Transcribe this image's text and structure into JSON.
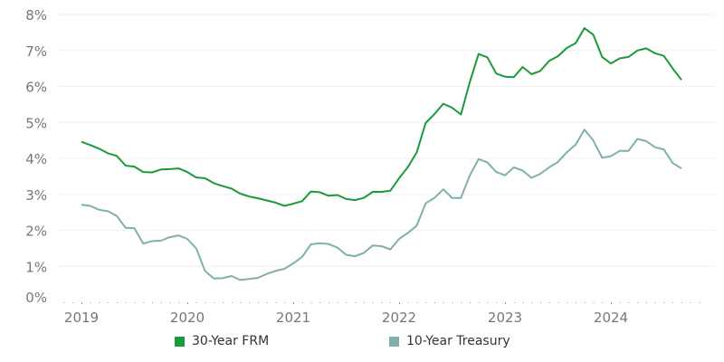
{
  "chart_data": {
    "type": "line",
    "title": "",
    "xlabel": "",
    "ylabel": "",
    "ylim": [
      0,
      8
    ],
    "y_ticks": [
      "0%",
      "1%",
      "2%",
      "3%",
      "4%",
      "5%",
      "6%",
      "7%",
      "8%"
    ],
    "x_ticks": [
      "2019",
      "2020",
      "2021",
      "2022",
      "2023",
      "2024"
    ],
    "grid": "horizontal",
    "legend_position": "bottom",
    "x_start": "2019-01",
    "x_step": "month",
    "series": [
      {
        "name": "30-Year FRM",
        "color": "#1a9a3a",
        "values": [
          4.46,
          4.37,
          4.27,
          4.14,
          4.07,
          3.8,
          3.77,
          3.62,
          3.61,
          3.69,
          3.7,
          3.72,
          3.62,
          3.47,
          3.45,
          3.31,
          3.23,
          3.16,
          3.02,
          2.94,
          2.89,
          2.83,
          2.77,
          2.68,
          2.74,
          2.81,
          3.08,
          3.06,
          2.96,
          2.98,
          2.87,
          2.84,
          2.9,
          3.07,
          3.07,
          3.1,
          3.45,
          3.76,
          4.17,
          4.98,
          5.23,
          5.52,
          5.41,
          5.22,
          6.11,
          6.9,
          6.81,
          6.36,
          6.27,
          6.26,
          6.54,
          6.34,
          6.43,
          6.71,
          6.84,
          7.07,
          7.2,
          7.62,
          7.44,
          6.82,
          6.64,
          6.78,
          6.82,
          7.0,
          7.06,
          6.92,
          6.85,
          6.5,
          6.18
        ]
      },
      {
        "name": "10-Year Treasury",
        "color": "#7fb0ad",
        "values": [
          2.71,
          2.68,
          2.57,
          2.53,
          2.4,
          2.07,
          2.06,
          1.63,
          1.7,
          1.71,
          1.81,
          1.86,
          1.76,
          1.5,
          0.87,
          0.66,
          0.67,
          0.73,
          0.62,
          0.65,
          0.68,
          0.79,
          0.87,
          0.93,
          1.08,
          1.26,
          1.61,
          1.64,
          1.62,
          1.52,
          1.32,
          1.28,
          1.37,
          1.58,
          1.56,
          1.47,
          1.76,
          1.93,
          2.13,
          2.75,
          2.9,
          3.14,
          2.9,
          2.9,
          3.52,
          3.98,
          3.89,
          3.62,
          3.53,
          3.75,
          3.66,
          3.46,
          3.57,
          3.75,
          3.9,
          4.17,
          4.38,
          4.8,
          4.5,
          4.02,
          4.06,
          4.21,
          4.21,
          4.54,
          4.48,
          4.31,
          4.25,
          3.87,
          3.72
        ]
      }
    ]
  }
}
